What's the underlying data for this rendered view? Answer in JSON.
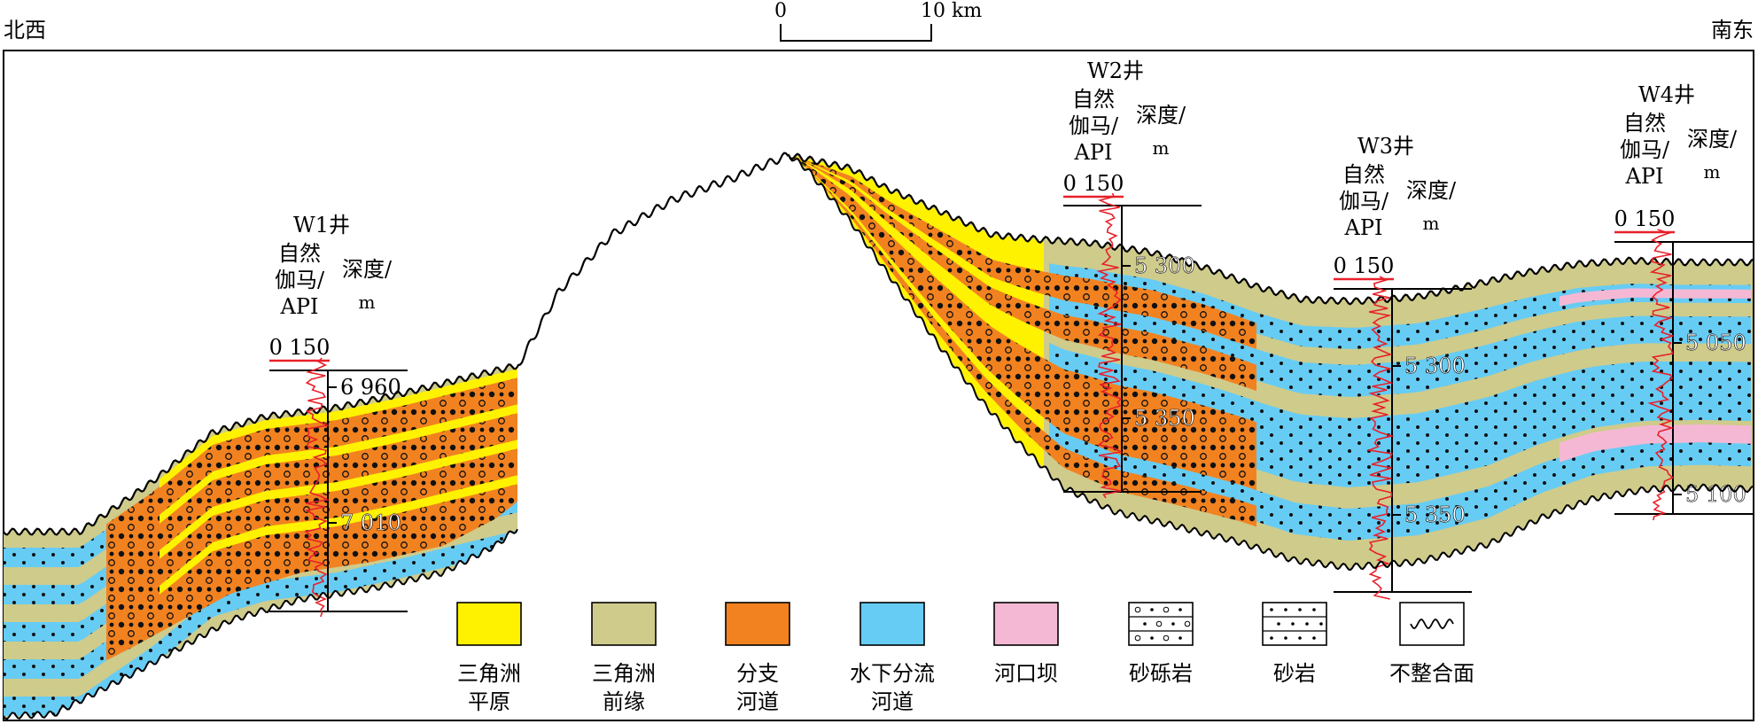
{
  "colors": {
    "yellow": "#FFF200",
    "khaki": "#CFCB8B",
    "orange": "#F28220",
    "blue": "#66CCF4",
    "pink": "#F4B8D4",
    "log_red": "#E8202A",
    "frame": "#000000"
  },
  "corners": {
    "left": "北西",
    "right": "南东"
  },
  "scale_bar": {
    "start": "0",
    "end": "10 km"
  },
  "curve_header": [
    "自然",
    "伽马/",
    "API"
  ],
  "depth_header": [
    "深度/",
    "m"
  ],
  "wells": [
    {
      "name": "W1井",
      "api_range": "0 150",
      "depths": [
        "6 960",
        "7 010"
      ]
    },
    {
      "name": "W2井",
      "api_range": "0 150",
      "depths": [
        "5 300",
        "5 350"
      ]
    },
    {
      "name": "W3井",
      "api_range": "0 150",
      "depths": [
        "5 300",
        "5 350"
      ]
    },
    {
      "name": "W4井",
      "api_range": "0 150",
      "depths": [
        "5 050",
        "5 100"
      ]
    }
  ],
  "legend": [
    {
      "key": "delta-plain",
      "lines": [
        "三角洲",
        "平原"
      ],
      "fill": "yellow"
    },
    {
      "key": "delta-front",
      "lines": [
        "三角洲",
        "前缘"
      ],
      "fill": "khaki"
    },
    {
      "key": "distributary-channel",
      "lines": [
        "分支",
        "河道"
      ],
      "fill": "orange"
    },
    {
      "key": "subaqueous-channel",
      "lines": [
        "水下分流",
        "河道"
      ],
      "fill": "blue"
    },
    {
      "key": "mouth-bar",
      "lines": [
        "河口坝"
      ],
      "fill": "pink"
    },
    {
      "key": "sandy-conglomerate",
      "lines": [
        "砂砾岩"
      ],
      "pattern": "gravel"
    },
    {
      "key": "sandstone",
      "lines": [
        "砂岩"
      ],
      "pattern": "sand"
    },
    {
      "key": "unconformity",
      "lines": [
        "不整合面"
      ],
      "pattern": "wave"
    }
  ]
}
